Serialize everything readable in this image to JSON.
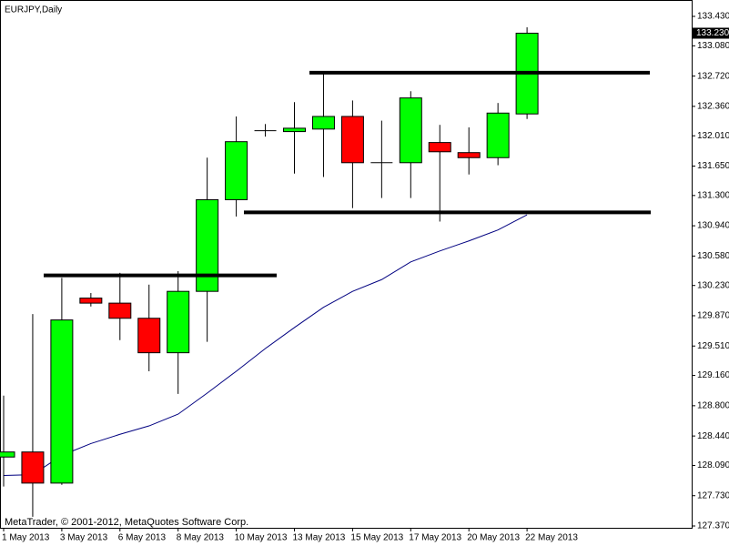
{
  "chart_data": {
    "type": "candlestick",
    "title": "EURJPY,Daily",
    "footer": "MetaTrader, © 2001-2012, MetaQuotes Software Corp.",
    "categories": [
      "1 May 2013",
      null,
      "3 May 2013",
      null,
      "6 May 2013",
      null,
      "8 May 2013",
      null,
      "10 May 2013",
      null,
      "13 May 2013",
      null,
      "15 May 2013",
      null,
      "17 May 2013",
      null,
      "20 May 2013",
      null,
      "22 May 2013"
    ],
    "open": [
      128.19,
      128.25,
      127.88,
      130.08,
      130.02,
      129.84,
      129.43,
      130.16,
      131.25,
      132.07,
      132.06,
      132.09,
      132.24,
      131.69,
      131.69,
      131.93,
      131.81,
      131.75,
      132.27
    ],
    "high": [
      128.92,
      129.89,
      130.32,
      130.14,
      130.38,
      130.24,
      130.4,
      131.75,
      132.24,
      132.15,
      132.41,
      132.76,
      132.43,
      132.19,
      132.54,
      132.14,
      132.11,
      132.4,
      133.3
    ],
    "low": [
      127.84,
      127.48,
      127.86,
      129.98,
      129.58,
      129.21,
      128.94,
      129.56,
      131.05,
      132.0,
      131.56,
      131.52,
      131.15,
      131.27,
      131.27,
      130.99,
      131.55,
      131.66,
      132.21
    ],
    "close": [
      128.25,
      127.88,
      129.82,
      130.02,
      129.84,
      129.43,
      130.16,
      131.25,
      131.94,
      132.07,
      132.1,
      132.24,
      131.69,
      131.69,
      132.46,
      131.82,
      131.75,
      132.28,
      133.23
    ],
    "up_color": "#00ff00",
    "down_color": "#ff0000",
    "ma": {
      "color": "#000080",
      "values": [
        127.97,
        127.98,
        128.21,
        128.35,
        128.46,
        128.56,
        128.7,
        128.95,
        129.21,
        129.48,
        129.73,
        129.97,
        130.16,
        130.3,
        130.51,
        130.64,
        130.76,
        130.89,
        131.07
      ]
    },
    "levels": [
      130.35,
      132.76,
      131.1
    ],
    "last_price": {
      "value": 133.23,
      "label": "133.230"
    },
    "ylim": [
      127.37,
      133.43
    ],
    "yticks": [
      {
        "value": 133.43,
        "label": "133.430"
      },
      {
        "value": 133.08,
        "label": "133.080"
      },
      {
        "value": 132.72,
        "label": "132.720"
      },
      {
        "value": 132.36,
        "label": "132.360"
      },
      {
        "value": 132.01,
        "label": "132.010"
      },
      {
        "value": 131.65,
        "label": "131.650"
      },
      {
        "value": 131.3,
        "label": "131.300"
      },
      {
        "value": 130.94,
        "label": "130.940"
      },
      {
        "value": 130.58,
        "label": "130.580"
      },
      {
        "value": 130.23,
        "label": "130.230"
      },
      {
        "value": 129.87,
        "label": "129.870"
      },
      {
        "value": 129.51,
        "label": "129.510"
      },
      {
        "value": 129.16,
        "label": "129.160"
      },
      {
        "value": 128.8,
        "label": "128.800"
      },
      {
        "value": 128.44,
        "label": "128.440"
      },
      {
        "value": 128.09,
        "label": "128.090"
      },
      {
        "value": 127.73,
        "label": "127.730"
      },
      {
        "value": 127.37,
        "label": "127.370"
      }
    ]
  }
}
